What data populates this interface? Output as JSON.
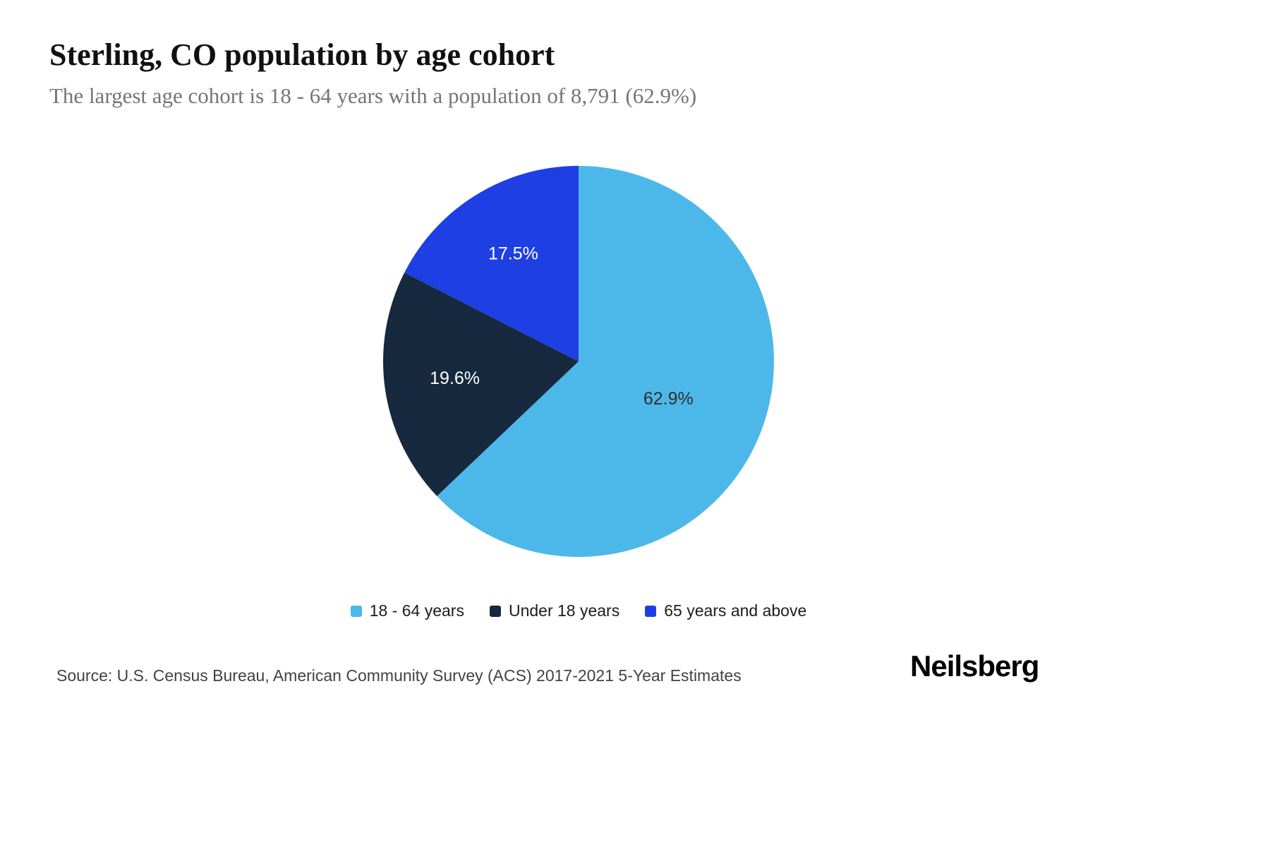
{
  "header": {
    "title": "Sterling, CO population by age cohort",
    "subtitle": "The largest age cohort is 18 - 64 years with a population of 8,791 (62.9%)"
  },
  "chart_data": {
    "type": "pie",
    "title": "Sterling, CO population by age cohort",
    "unit": "%",
    "start_angle_deg": 0,
    "direction": "clockwise",
    "legend_position": "bottom",
    "slices": [
      {
        "label": "18 - 64 years",
        "value": 62.9,
        "color": "#4cb8e9",
        "label_color": "#2e2e2e"
      },
      {
        "label": "Under 18 years",
        "value": 19.6,
        "color": "#17293f",
        "label_color": "#ffffff"
      },
      {
        "label": "65 years and above",
        "value": 17.5,
        "color": "#1e3fe4",
        "label_color": "#ffffff"
      }
    ]
  },
  "footer": {
    "source": "Source: U.S. Census Bureau, American Community Survey (ACS) 2017-2021 5-Year Estimates",
    "brand": "Neilsberg"
  }
}
